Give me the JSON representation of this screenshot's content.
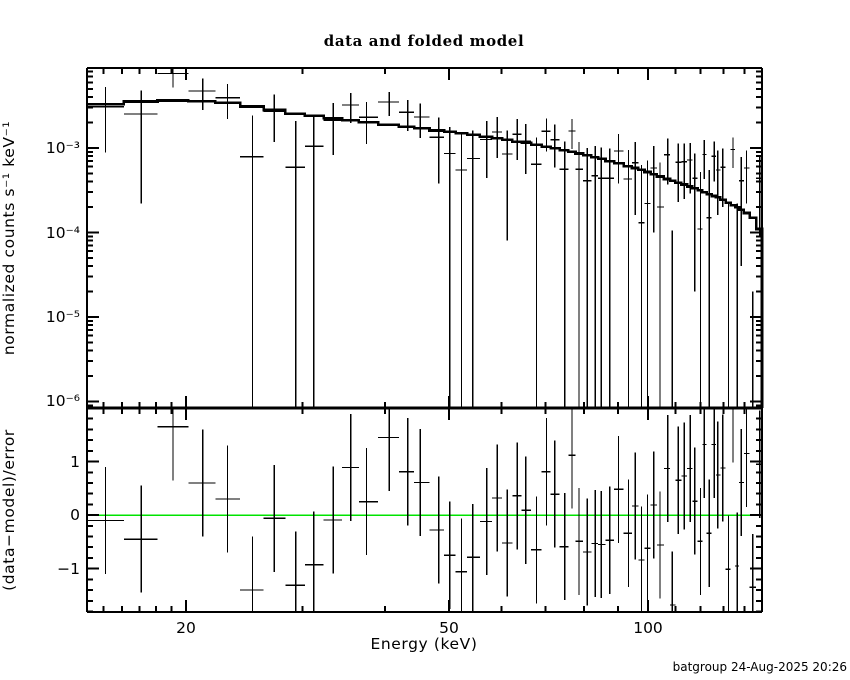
{
  "title": "data and folded model",
  "xlabel": "Energy (keV)",
  "x_tick_labels": [
    "20",
    "50",
    "100"
  ],
  "timestamp": "batgroup 24-Aug-2025 20:26",
  "top_panel": {
    "ylabel": "normalized counts s⁻¹ keV⁻¹",
    "y_tick_labels": [
      "10⁻³",
      "10⁻⁴",
      "10⁻⁵",
      "10⁻⁶"
    ]
  },
  "bottom_panel": {
    "ylabel": "(data−model)/error",
    "y_tick_labels": [
      "1",
      "0",
      "−1"
    ]
  },
  "colors": {
    "foreground": "#000000",
    "background": "#ffffff",
    "zero_line": "#00e300"
  },
  "chart_data": [
    {
      "type": "line",
      "name": "spectrum-with-folded-model",
      "title": "data and folded model",
      "xlabel": "Energy (keV)",
      "ylabel": "normalized counts s^-1 keV^-1",
      "xscale": "log",
      "yscale": "log",
      "xlim": [
        14.16,
        148.7
      ],
      "ylim": [
        8.37e-07,
        0.00885
      ],
      "x_ticks": [
        20,
        50,
        100
      ],
      "x_minor_ticks": [
        15,
        16,
        17,
        18,
        19,
        30,
        40,
        60,
        70,
        80,
        90,
        110,
        120,
        130,
        140
      ],
      "y_ticks": [
        0.001,
        0.0001,
        1e-05,
        1e-06
      ],
      "legend": "none",
      "grid": false,
      "energy_kev": [
        15.1,
        17.1,
        19.1,
        21.2,
        23.1,
        25.2,
        27.2,
        29.3,
        31.2,
        33.4,
        35.5,
        37.5,
        40.6,
        43.3,
        45.2,
        48.2,
        50.1,
        52.2,
        54.3,
        57.0,
        59.1,
        61.2,
        63.4,
        65.3,
        67.8,
        70.2,
        72.2,
        74.8,
        76.7,
        78.6,
        80.9,
        83.2,
        84.9,
        87.5,
        90.2,
        93.4,
        95.6,
        97.7,
        99.8,
        102.0,
        104.2,
        107.1,
        108.8,
        111.1,
        113.4,
        115.8,
        117.6,
        120.0,
        121.6,
        123.7,
        125.9,
        127.5,
        129.7,
        132.3,
        134.4,
        136.4,
        138.3,
        140.9,
        144.0,
        147.5
      ],
      "data": [
        0.00308,
        0.00252,
        0.00761,
        0.00472,
        0.00395,
        0.00079,
        0.00273,
        0.00059,
        0.00105,
        0.00213,
        0.00323,
        0.00232,
        0.0035,
        0.00264,
        0.00233,
        0.00134,
        0.00086,
        0.00055,
        0.00075,
        0.00126,
        0.00155,
        0.00085,
        0.00146,
        0.00121,
        0.00064,
        0.00158,
        0.00125,
        0.00056,
        0.00159,
        0.00056,
        0.00041,
        0.00047,
        0.00044,
        0.00044,
        0.00092,
        0.00043,
        0.00067,
        0.00013,
        0.00022,
        0.00058,
        0.0002,
        0.00083,
        -0.00035,
        0.00068,
        0.00069,
        0.00072,
        0.00044,
        0.00011,
        0.00084,
        0.00015,
        0.0008,
        0.00055,
        0.00059,
        -0.00016,
        0.00096,
        -0.00015,
        0.00041,
        0.00058,
        -0.00034,
        0.00044
      ],
      "error": [
        0.0022,
        0.0023,
        0.0024,
        0.0019,
        0.00175,
        0.00165,
        0.00155,
        0.0015,
        0.00145,
        0.0013,
        0.00125,
        0.0012,
        0.00112,
        0.00106,
        0.00102,
        0.00096,
        0.00092,
        0.00089,
        0.00086,
        0.00082,
        0.00079,
        0.00077,
        0.00074,
        0.00072,
        0.0007,
        0.00067,
        0.00066,
        0.00064,
        0.00062,
        0.00061,
        0.00059,
        0.00058,
        0.00057,
        0.00055,
        0.00054,
        0.00052,
        0.00051,
        0.0005,
        0.00049,
        0.00048,
        0.00047,
        0.00046,
        0.000455,
        0.00045,
        0.00044,
        0.00043,
        0.00042,
        0.00041,
        0.00041,
        0.0004,
        0.0004,
        0.00039,
        0.00039,
        0.00038,
        0.00038,
        0.00037,
        0.00037,
        0.00036,
        0.00036,
        0.00035
      ],
      "model": [
        0.0033,
        0.00355,
        0.00365,
        0.00358,
        0.00342,
        0.0031,
        0.00282,
        0.00255,
        0.0024,
        0.00225,
        0.00212,
        0.00202,
        0.00188,
        0.00178,
        0.00171,
        0.00161,
        0.00155,
        0.00149,
        0.00143,
        0.00136,
        0.0013,
        0.00125,
        0.00119,
        0.00115,
        0.00109,
        0.00104,
        0.00099,
        0.00094,
        0.0009,
        0.00086,
        0.00082,
        0.00078,
        0.00075,
        0.0007,
        0.00066,
        0.00061,
        0.00058,
        0.00055,
        0.00052,
        0.00049,
        0.00046,
        0.00043,
        0.00041,
        0.00039,
        0.00037,
        0.00035,
        0.000335,
        0.000315,
        0.0003,
        0.000285,
        0.00027,
        0.00026,
        0.000245,
        0.000225,
        0.00021,
        0.0002,
        0.000185,
        0.00017,
        0.00015,
        0.00011
      ]
    },
    {
      "type": "scatter",
      "name": "residuals",
      "ylabel": "(data-model)/error",
      "ylim": [
        -1.81,
        2.0
      ],
      "y_ticks": [
        -1,
        0,
        1
      ],
      "y_minor_step": 0.2,
      "zero_line_color": "#00e300",
      "residual": [
        -0.1,
        -0.45,
        1.65,
        0.6,
        0.3,
        -1.4,
        -0.06,
        -1.31,
        -0.93,
        -0.09,
        0.89,
        0.25,
        1.45,
        0.81,
        0.61,
        -0.28,
        -0.75,
        -1.06,
        -0.79,
        -0.12,
        0.32,
        -0.52,
        0.36,
        0.09,
        -0.65,
        0.81,
        0.39,
        -0.59,
        1.12,
        -0.49,
        -0.69,
        -0.53,
        -0.55,
        -0.47,
        0.48,
        -0.34,
        0.17,
        -0.84,
        -0.62,
        0.19,
        -0.56,
        0.87,
        -1.68,
        0.65,
        0.73,
        0.87,
        0.26,
        -0.49,
        1.32,
        -0.34,
        1.32,
        0.75,
        0.88,
        -1.01,
        1.98,
        -0.95,
        0.61,
        1.15,
        -1.35,
        0.95
      ],
      "residual_error": 1.0
    }
  ]
}
